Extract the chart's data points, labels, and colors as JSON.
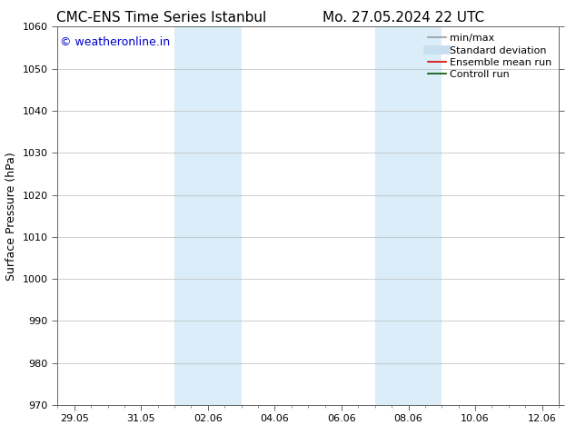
{
  "title_left": "CMC-ENS Time Series Istanbul",
  "title_right": "Mo. 27.05.2024 22 UTC",
  "ylabel": "Surface Pressure (hPa)",
  "ylim": [
    970,
    1060
  ],
  "yticks": [
    970,
    980,
    990,
    1000,
    1010,
    1020,
    1030,
    1040,
    1050,
    1060
  ],
  "xtick_labels": [
    "29.05",
    "31.05",
    "02.06",
    "04.06",
    "06.06",
    "08.06",
    "10.06",
    "12.06"
  ],
  "xtick_positions": [
    0,
    2,
    4,
    6,
    8,
    10,
    12,
    14
  ],
  "xlim_days": [
    -0.5,
    14.5
  ],
  "shaded_bands": [
    {
      "x_start": 3.0,
      "x_end": 5.0
    },
    {
      "x_start": 9.0,
      "x_end": 11.0
    }
  ],
  "shade_color": "#daedf8",
  "background_color": "#ffffff",
  "watermark_text": "© weatheronline.in",
  "watermark_color": "#0000cc",
  "grid_color": "#bbbbbb",
  "legend_items": [
    {
      "label": "min/max",
      "color": "#999999",
      "lw": 1.2,
      "style": "solid"
    },
    {
      "label": "Standard deviation",
      "color": "#c8dff0",
      "lw": 7,
      "style": "solid"
    },
    {
      "label": "Ensemble mean run",
      "color": "#dd0000",
      "lw": 1.2,
      "style": "solid"
    },
    {
      "label": "Controll run",
      "color": "#005500",
      "lw": 1.2,
      "style": "solid"
    }
  ],
  "title_fontsize": 11,
  "axis_label_fontsize": 9,
  "tick_fontsize": 8,
  "legend_fontsize": 8,
  "watermark_fontsize": 9
}
